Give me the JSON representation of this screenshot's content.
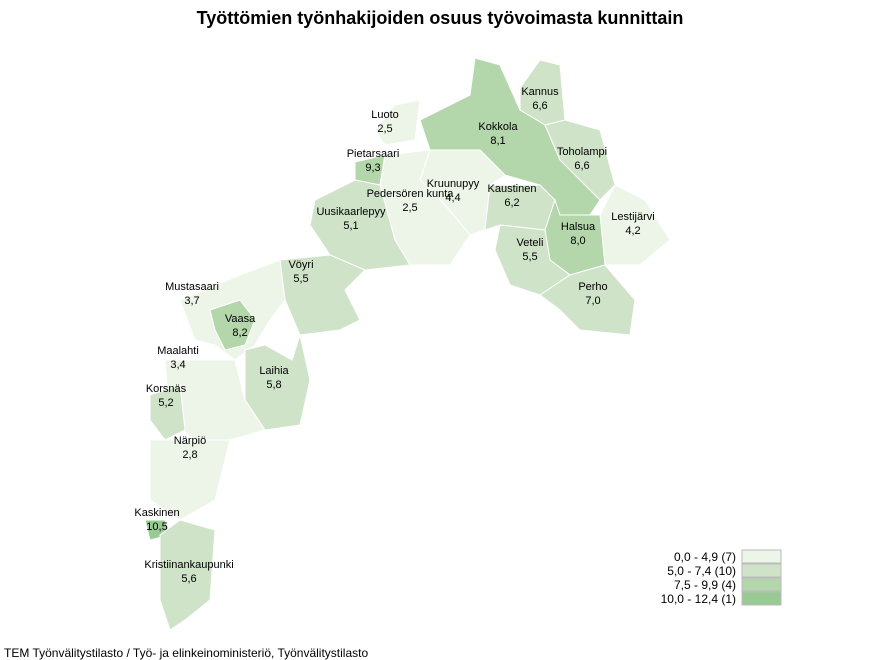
{
  "title": "Työttömien työnhakijoiden osuus työvoimasta kunnittain",
  "regions": [
    {
      "name": "Kannus",
      "value": "6,6",
      "color": "#cfe3c9"
    },
    {
      "name": "Luoto",
      "value": "2,5",
      "color": "#edf5e9"
    },
    {
      "name": "Kokkola",
      "value": "8,1",
      "color": "#b3d6ab"
    },
    {
      "name": "Toholampi",
      "value": "6,6",
      "color": "#cfe3c9"
    },
    {
      "name": "Pietarsaari",
      "value": "9,3",
      "color": "#b3d6ab"
    },
    {
      "name": "Kruunupyy",
      "value": "4,4",
      "color": "#edf5e9"
    },
    {
      "name": "Pedersören kunta",
      "value": "2,5",
      "color": "#edf5e9"
    },
    {
      "name": "Kaustinen",
      "value": "6,2",
      "color": "#cfe3c9"
    },
    {
      "name": "Lestijärvi",
      "value": "4,2",
      "color": "#edf5e9"
    },
    {
      "name": "Halsua",
      "value": "8,0",
      "color": "#b3d6ab"
    },
    {
      "name": "Veteli",
      "value": "5,5",
      "color": "#cfe3c9"
    },
    {
      "name": "Uusikaarlepyy",
      "value": "5,1",
      "color": "#cfe3c9"
    },
    {
      "name": "Perho",
      "value": "7,0",
      "color": "#cfe3c9"
    },
    {
      "name": "Vöyri",
      "value": "5,5",
      "color": "#cfe3c9"
    },
    {
      "name": "Mustasaari",
      "value": "3,7",
      "color": "#edf5e9"
    },
    {
      "name": "Vaasa",
      "value": "8,2",
      "color": "#b3d6ab"
    },
    {
      "name": "Laihia",
      "value": "5,8",
      "color": "#cfe3c9"
    },
    {
      "name": "Maalahti",
      "value": "3,4",
      "color": "#edf5e9"
    },
    {
      "name": "Korsnäs",
      "value": "5,2",
      "color": "#cfe3c9"
    },
    {
      "name": "Närpiö",
      "value": "2,8",
      "color": "#edf5e9"
    },
    {
      "name": "Kaskinen",
      "value": "10,5",
      "color": "#98cb93"
    },
    {
      "name": "Kristiinankaupunki",
      "value": "5,6",
      "color": "#cfe3c9"
    }
  ],
  "legend": [
    {
      "label": "0,0 - 4,9 (7)",
      "color": "#edf5e9"
    },
    {
      "label": "5,0 - 7,4 (10)",
      "color": "#cfe3c9"
    },
    {
      "label": "7,5 - 9,9 (4)",
      "color": "#b3d6ab"
    },
    {
      "label": "10,0 - 12,4 (1)",
      "color": "#98cb93"
    }
  ],
  "source": "TEM Työnvälitystilasto / Työ- ja elinkeinoministeriö, Työnvälitystilasto"
}
